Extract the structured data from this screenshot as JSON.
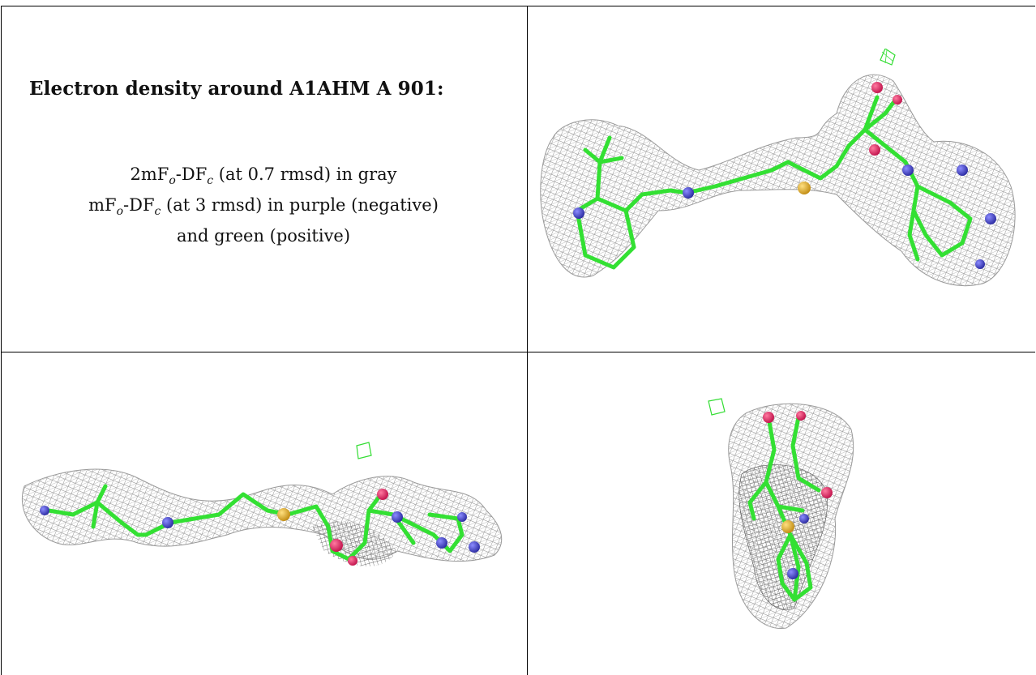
{
  "caption": {
    "title": "Electron density around A1AHM A 901:",
    "line1": {
      "a": "2mF",
      "o": "o",
      "b": "-DF",
      "c": "c",
      "rest": " (at 0.7 rmsd) in gray"
    },
    "line2": {
      "a": "mF",
      "o": "o",
      "b": "-DF",
      "c": "c",
      "rest": " (at 3 rmsd) in purple (negative)"
    },
    "line3": "and green (positive)"
  },
  "colors": {
    "mesh_gray": "#8a8a8a",
    "carbon_green": "#33e033",
    "nitrogen_blue": "#3a3acc",
    "oxygen_red": "#e0205a",
    "sulfur_yellow": "#e8b830",
    "positive_green": "#33dd33",
    "grid_line": "#000000"
  },
  "panels": [
    {
      "name": "view-top-right",
      "icon": "electron-density-mesh-icon"
    },
    {
      "name": "view-bottom-left",
      "icon": "electron-density-mesh-icon"
    },
    {
      "name": "view-bottom-right",
      "icon": "electron-density-mesh-icon"
    }
  ]
}
